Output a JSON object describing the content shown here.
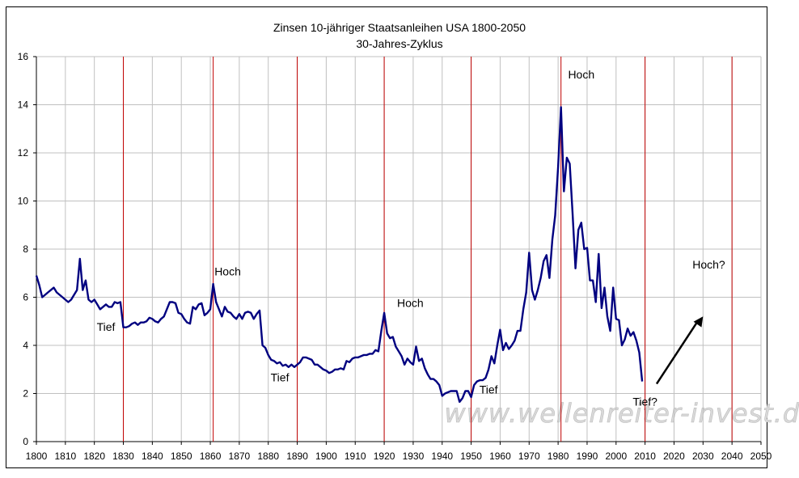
{
  "chart_data": {
    "type": "line",
    "title": "Zinsen 10-jähriger Staatsanleihen USA 1800-2050",
    "subtitle": "30-Jahres-Zyklus",
    "xlim": [
      1800,
      2050
    ],
    "ylim": [
      0,
      16
    ],
    "x_ticks": [
      "1800",
      "1810",
      "1820",
      "1830",
      "1840",
      "1850",
      "1860",
      "1870",
      "1880",
      "1890",
      "1900",
      "1910",
      "1920",
      "1930",
      "1940",
      "1950",
      "1960",
      "1970",
      "1980",
      "1990",
      "2000",
      "2010",
      "2020",
      "2030",
      "2040",
      "2050"
    ],
    "y_ticks": [
      "0",
      "2",
      "4",
      "6",
      "8",
      "10",
      "12",
      "14",
      "16"
    ],
    "grid": true,
    "line_color": "#000080",
    "cycle_line_color": "#c00000",
    "cycle_lines": [
      1830,
      1861,
      1890,
      1920,
      1950,
      1981,
      2010,
      2040
    ],
    "series": [
      {
        "x": [
          1800,
          1801,
          1802,
          1803,
          1804,
          1805,
          1806,
          1807,
          1808,
          1809,
          1810,
          1811,
          1812,
          1813,
          1814,
          1815,
          1816,
          1817,
          1818,
          1819,
          1820,
          1821,
          1822,
          1823,
          1824,
          1825,
          1826,
          1827,
          1828,
          1829,
          1830,
          1831,
          1832,
          1833,
          1834,
          1835,
          1836,
          1837,
          1838,
          1839,
          1840,
          1841,
          1842,
          1843,
          1844,
          1845,
          1846,
          1847,
          1848,
          1849,
          1850,
          1851,
          1852,
          1853,
          1854,
          1855,
          1856,
          1857,
          1858,
          1859,
          1860,
          1861,
          1862,
          1863,
          1864,
          1865,
          1866,
          1867,
          1868,
          1869,
          1870,
          1871,
          1872,
          1873,
          1874,
          1875,
          1876,
          1877,
          1878,
          1879,
          1880,
          1881,
          1882,
          1883,
          1884,
          1885,
          1886,
          1887,
          1888,
          1889,
          1890,
          1891,
          1892,
          1893,
          1894,
          1895,
          1896,
          1897,
          1898,
          1899,
          1900,
          1901,
          1902,
          1903,
          1904,
          1905,
          1906,
          1907,
          1908,
          1909,
          1910,
          1911,
          1912,
          1913,
          1914,
          1915,
          1916,
          1917,
          1918,
          1919,
          1920,
          1921,
          1922,
          1923,
          1924,
          1925,
          1926,
          1927,
          1928,
          1929,
          1930,
          1931,
          1932,
          1933,
          1934,
          1935,
          1936,
          1937,
          1938,
          1939,
          1940,
          1941,
          1942,
          1943,
          1944,
          1945,
          1946,
          1947,
          1948,
          1949,
          1950,
          1951,
          1952,
          1953,
          1954,
          1955,
          1956,
          1957,
          1958,
          1959,
          1960,
          1961,
          1962,
          1963,
          1964,
          1965,
          1966,
          1967,
          1968,
          1969,
          1970,
          1971,
          1972,
          1973,
          1974,
          1975,
          1976,
          1977,
          1978,
          1979,
          1980,
          1981,
          1982,
          1983,
          1984,
          1985,
          1986,
          1987,
          1988,
          1989,
          1990,
          1991,
          1992,
          1993,
          1994,
          1995,
          1996,
          1997,
          1998,
          1999,
          2000,
          2001,
          2002,
          2003,
          2004,
          2005,
          2006,
          2007,
          2008,
          2009
        ],
        "y": [
          6.9,
          6.5,
          6.0,
          6.1,
          6.2,
          6.3,
          6.4,
          6.2,
          6.1,
          6.0,
          5.9,
          5.8,
          5.9,
          6.1,
          6.3,
          7.6,
          6.3,
          6.7,
          5.9,
          5.8,
          5.9,
          5.7,
          5.5,
          5.6,
          5.7,
          5.6,
          5.6,
          5.8,
          5.75,
          5.8,
          4.75,
          4.75,
          4.8,
          4.9,
          4.95,
          4.85,
          4.95,
          4.95,
          5.0,
          5.15,
          5.1,
          5.0,
          4.95,
          5.1,
          5.2,
          5.5,
          5.8,
          5.8,
          5.75,
          5.35,
          5.3,
          5.1,
          4.95,
          4.9,
          5.6,
          5.5,
          5.7,
          5.75,
          5.25,
          5.35,
          5.5,
          6.55,
          5.8,
          5.5,
          5.2,
          5.6,
          5.4,
          5.35,
          5.2,
          5.1,
          5.3,
          5.1,
          5.35,
          5.4,
          5.35,
          5.1,
          5.3,
          5.45,
          4.0,
          3.9,
          3.6,
          3.4,
          3.35,
          3.25,
          3.3,
          3.15,
          3.2,
          3.1,
          3.2,
          3.1,
          3.2,
          3.3,
          3.5,
          3.5,
          3.45,
          3.4,
          3.2,
          3.2,
          3.1,
          3.0,
          2.95,
          2.85,
          2.9,
          3.0,
          3.0,
          3.05,
          3.0,
          3.35,
          3.3,
          3.45,
          3.5,
          3.5,
          3.55,
          3.6,
          3.6,
          3.65,
          3.65,
          3.8,
          3.75,
          4.6,
          5.35,
          4.5,
          4.3,
          4.35,
          3.95,
          3.75,
          3.55,
          3.2,
          3.45,
          3.3,
          3.2,
          3.95,
          3.35,
          3.45,
          3.05,
          2.8,
          2.6,
          2.6,
          2.5,
          2.35,
          1.9,
          2.0,
          2.05,
          2.1,
          2.1,
          2.1,
          1.65,
          1.8,
          2.1,
          2.1,
          1.85,
          2.35,
          2.5,
          2.55,
          2.55,
          2.65,
          3.0,
          3.55,
          3.25,
          4.0,
          4.65,
          3.8,
          4.1,
          3.85,
          4.0,
          4.2,
          4.6,
          4.6,
          5.5,
          6.2,
          7.85,
          6.3,
          5.9,
          6.3,
          6.8,
          7.5,
          7.75,
          6.8,
          8.4,
          9.4,
          11.4,
          13.9,
          10.4,
          11.8,
          11.55,
          9.5,
          7.2,
          8.8,
          9.1,
          8.0,
          8.05,
          6.7,
          6.7,
          5.8,
          7.8,
          5.55,
          6.4,
          5.2,
          4.6,
          6.4,
          5.1,
          5.05,
          4.0,
          4.25,
          4.7,
          4.4,
          4.55,
          4.2,
          3.7,
          2.5
        ]
      }
    ],
    "annotations": [
      {
        "text": "Tief",
        "x": 1824,
        "y": 4.6
      },
      {
        "text": "Hoch",
        "x": 1866,
        "y": 6.9
      },
      {
        "text": "Tief",
        "x": 1884,
        "y": 2.5
      },
      {
        "text": "Hoch",
        "x": 1929,
        "y": 5.6
      },
      {
        "text": "Tief",
        "x": 1956,
        "y": 2.0
      },
      {
        "text": "Hoch",
        "x": 1988,
        "y": 15.1
      },
      {
        "text": "Hoch?",
        "x": 2032,
        "y": 7.2
      },
      {
        "text": "Tief?",
        "x": 2010,
        "y": 1.5
      }
    ],
    "arrow": {
      "from": [
        2014,
        2.4
      ],
      "to": [
        2030,
        5.2
      ]
    },
    "watermark": "www.wellenreiter-invest.de"
  }
}
